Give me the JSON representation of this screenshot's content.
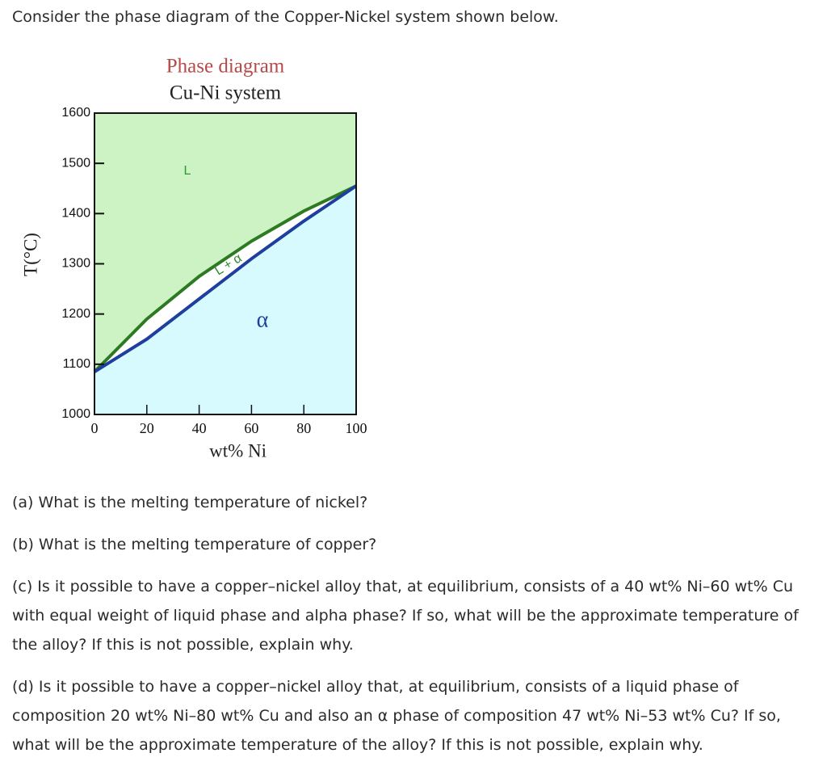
{
  "intro": "Consider the phase diagram of the Copper-Nickel system shown below.",
  "chart_data": {
    "type": "line",
    "title": "Phase diagram",
    "subtitle": "Cu-Ni system",
    "x_label": "wt% Ni",
    "y_label": "T(°C)",
    "x": [
      0,
      20,
      40,
      60,
      80,
      100
    ],
    "series": [
      {
        "color": "#2d7a23",
        "fill": "#ffffff",
        "values": [
          1085,
          1190,
          1275,
          1345,
          1405,
          1455
        ]
      },
      {
        "color": "#1f3f9e",
        "fill": "#d6fafd",
        "values": [
          1085,
          1150,
          1230,
          1310,
          1385,
          1455
        ]
      }
    ],
    "background": "#cdf3c4",
    "annotations": [
      "L",
      "L + α",
      "α"
    ],
    "xlim": [
      0,
      100
    ],
    "ylim": [
      1000,
      1600
    ],
    "xticks": [
      0,
      20,
      40,
      60,
      80,
      100
    ],
    "yticks": [
      1000,
      1100,
      1200,
      1300,
      1400,
      1500,
      1600
    ]
  },
  "questions": [
    "(a) What is the melting temperature of nickel?",
    "(b) What is the melting temperature of copper?",
    "(c) Is it possible to have a copper–nickel alloy that, at equilibrium, consists of a 40 wt% Ni–60 wt% Cu with equal weight of liquid phase and alpha phase? If so, what will be the approximate temperature of the alloy? If this is not possible, explain why.",
    "(d) Is it possible to have a copper–nickel alloy that, at equilibrium, consists of a liquid phase of composition 20 wt% Ni–80 wt% Cu and also an α phase of composition 47 wt% Ni–53 wt% Cu? If so, what will be the approximate temperature of the alloy? If this is not possible, explain why."
  ]
}
